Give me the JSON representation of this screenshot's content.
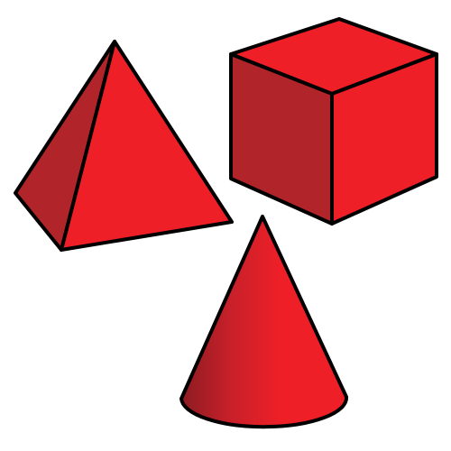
{
  "scene": {
    "shapes": [
      {
        "name": "pyramid",
        "icon": "pyramid-icon"
      },
      {
        "name": "cube",
        "icon": "cube-icon"
      },
      {
        "name": "cone",
        "icon": "cone-icon"
      }
    ]
  },
  "colors": {
    "background": "#ffffff",
    "face_light": "#ee1f27",
    "face_dark": "#b1252a",
    "cone_shadow": "#8c1c21",
    "outline": "#000000"
  }
}
